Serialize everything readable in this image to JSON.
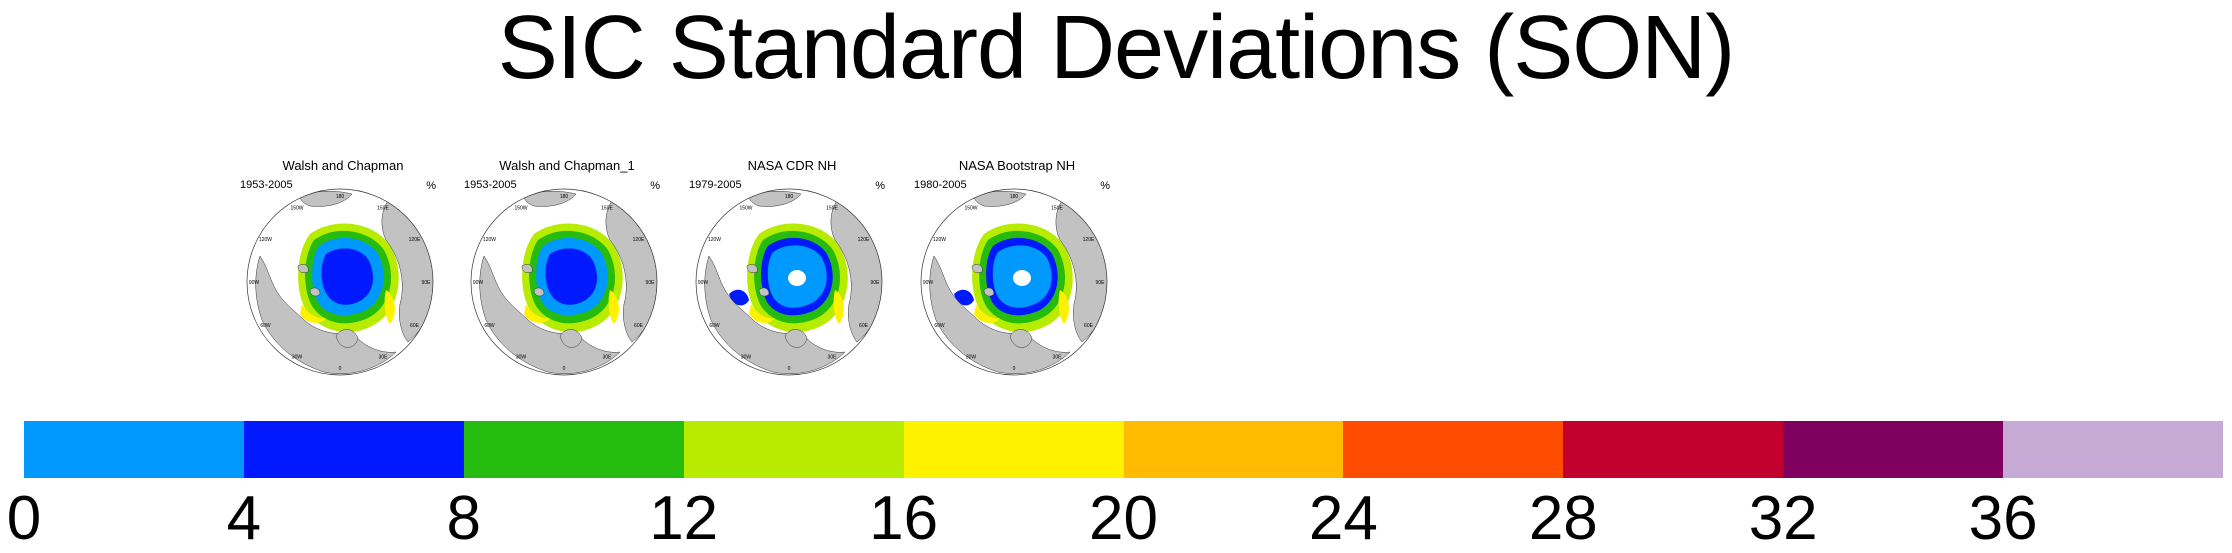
{
  "title": "SIC Standard Deviations (SON)",
  "panels": [
    {
      "title": "Walsh and Chapman",
      "period": "1953-2005",
      "unit": "%",
      "pattern": "wc"
    },
    {
      "title": "Walsh and Chapman_1",
      "period": "1953-2005",
      "unit": "%",
      "pattern": "wc"
    },
    {
      "title": "NASA CDR NH",
      "period": "1979-2005",
      "unit": "%",
      "pattern": "nasa"
    },
    {
      "title": "NASA Bootstrap NH",
      "period": "1980-2005",
      "unit": "%",
      "pattern": "nasa"
    }
  ],
  "map_style": {
    "land": "#c2c2c2",
    "ocean": "#ffffff",
    "outline": "#333333"
  },
  "longitude_labels": [
    "180",
    "150E",
    "120E",
    "90E",
    "60E",
    "30E",
    "0",
    "30W",
    "60W",
    "90W",
    "120W",
    "150W"
  ],
  "colorbar": {
    "colors": [
      "#0099ff",
      "#0019ff",
      "#26bc0f",
      "#b7eb00",
      "#fff200",
      "#ffbb00",
      "#ff4c00",
      "#c1002d",
      "#80005f",
      "#c6aad5"
    ],
    "tick_labels": [
      "0",
      "4",
      "8",
      "12",
      "16",
      "20",
      "24",
      "28",
      "32",
      "36"
    ],
    "tick_values": [
      0,
      4,
      8,
      12,
      16,
      20,
      24,
      28,
      32,
      36
    ]
  }
}
